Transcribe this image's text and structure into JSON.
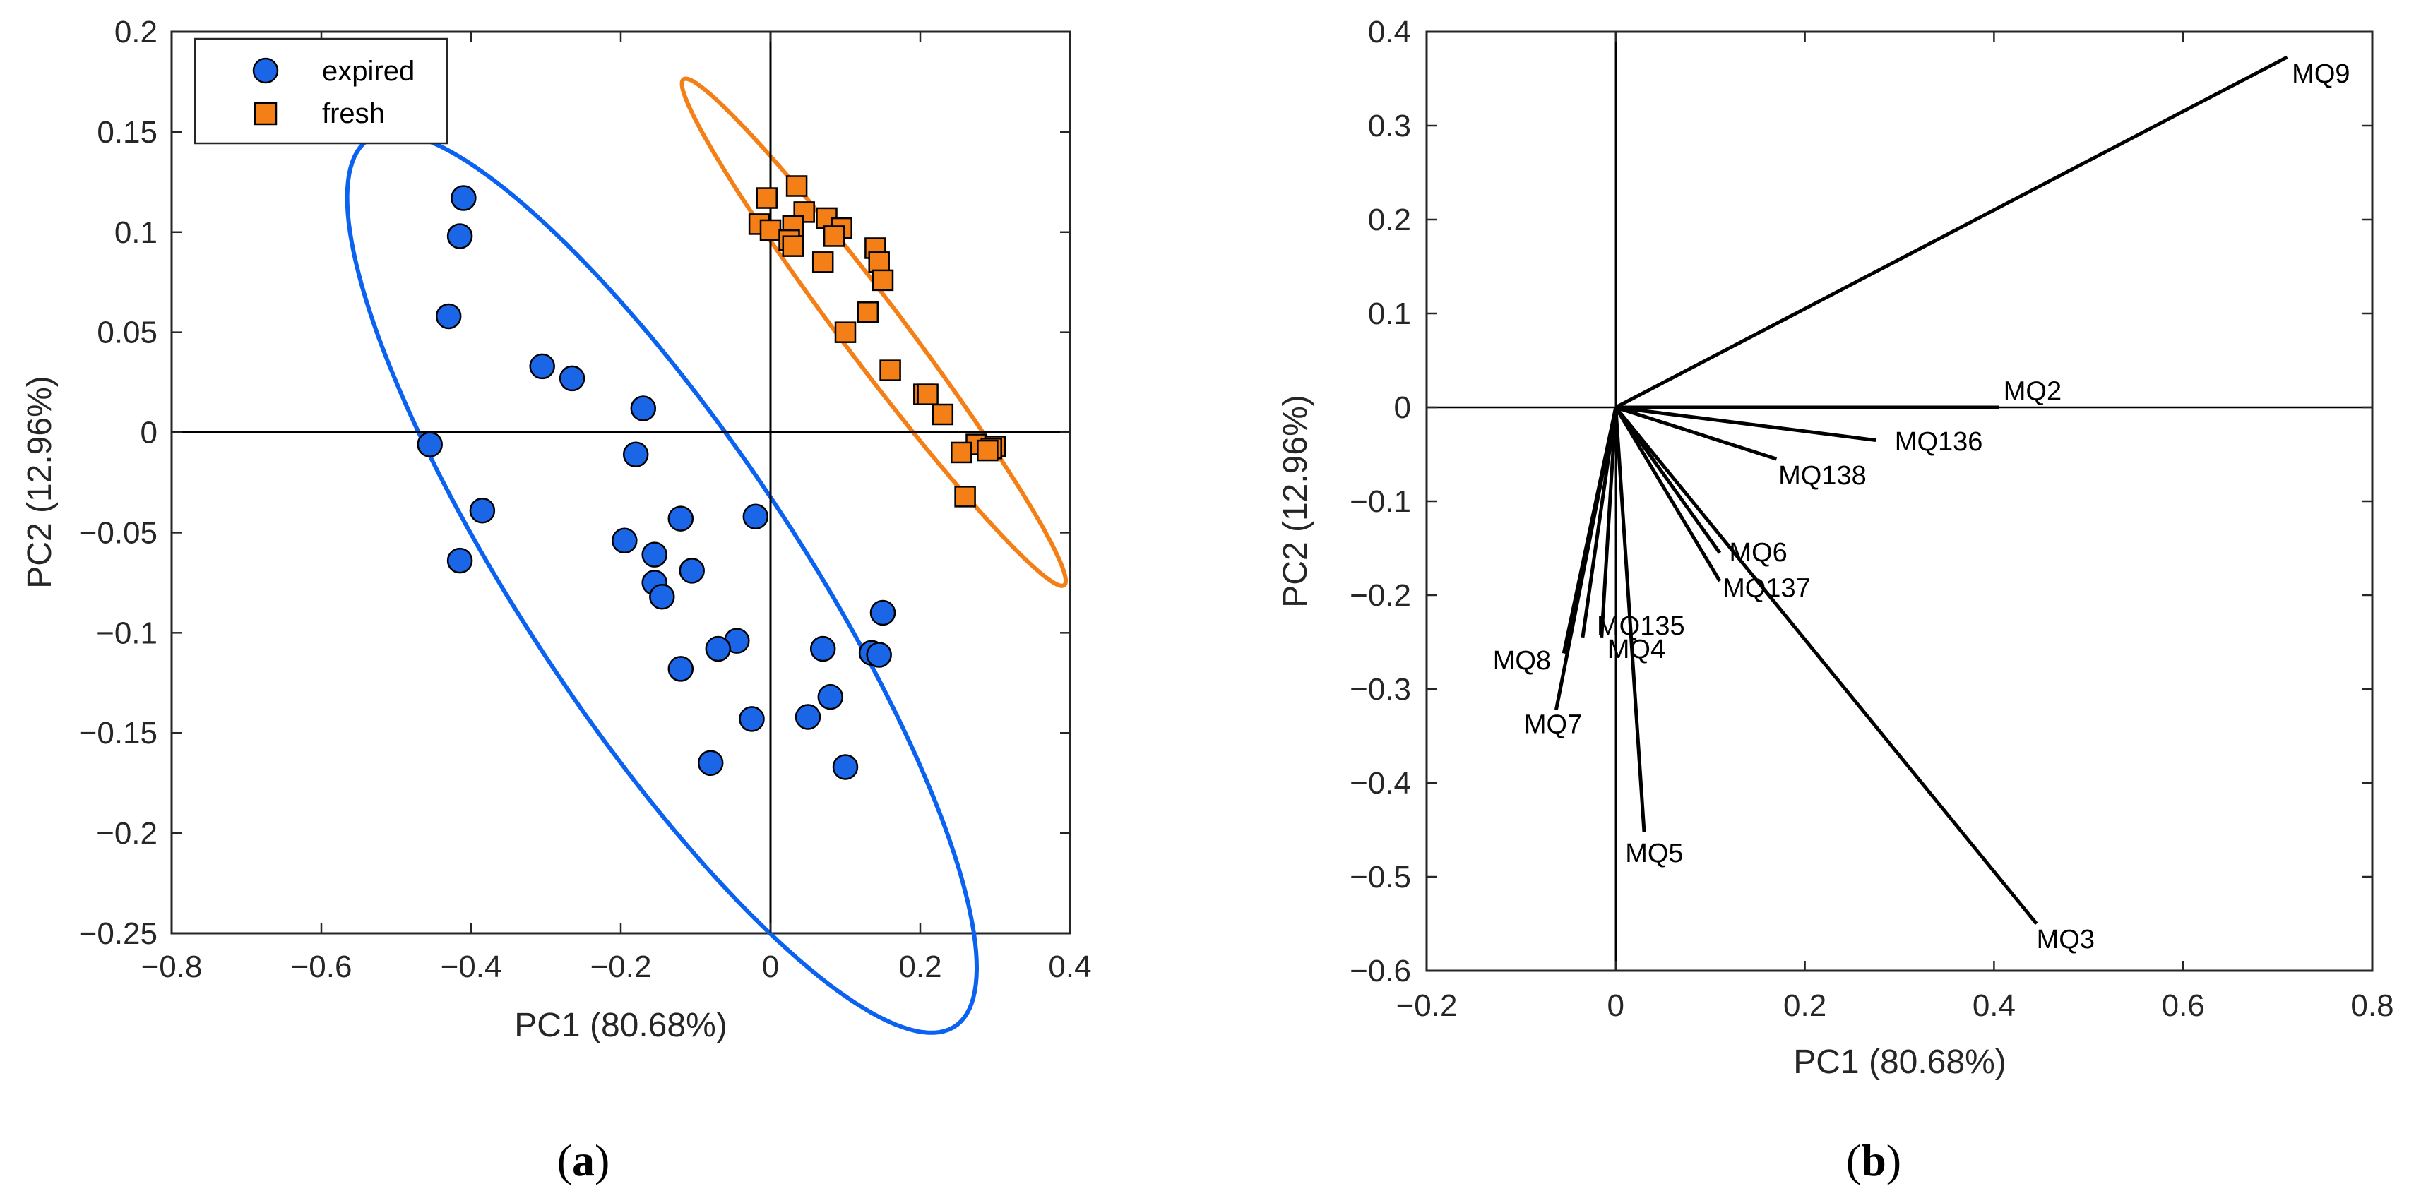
{
  "colors": {
    "expired": "#1a66e6",
    "expired_ellipse": "#0b62f0",
    "fresh": "#f57f17",
    "fresh_ellipse": "#f57f17",
    "axis": "#262626"
  },
  "captions": {
    "a_open": "(",
    "a_letter": "a",
    "a_close": ")",
    "b_open": "(",
    "b_letter": "b",
    "b_close": ")"
  },
  "chart_data": [
    {
      "type": "scatter",
      "panel": "a",
      "xlabel": "PC1 (80.68%)",
      "ylabel": "PC2 (12.96%)",
      "xlim": [
        -0.8,
        0.4
      ],
      "ylim": [
        -0.25,
        0.2
      ],
      "xticks": [
        -0.8,
        -0.6,
        -0.4,
        -0.2,
        0,
        0.2,
        0.4
      ],
      "xtick_labels": [
        "−0.8",
        "−0.6",
        "−0.4",
        "−0.2",
        "0",
        "0.2",
        "0.4"
      ],
      "yticks": [
        -0.25,
        -0.2,
        -0.15,
        -0.1,
        -0.05,
        0,
        0.05,
        0.1,
        0.15,
        0.2
      ],
      "ytick_labels": [
        "−0.25",
        "−0.2",
        "−0.15",
        "−0.1",
        "−0.05",
        "0",
        "0.05",
        "0.1",
        "0.15",
        "0.2"
      ],
      "legend": [
        "expired",
        "fresh"
      ],
      "series": [
        {
          "name": "expired",
          "marker": "circle",
          "points": [
            [
              -0.41,
              0.117
            ],
            [
              -0.415,
              0.098
            ],
            [
              -0.43,
              0.058
            ],
            [
              -0.305,
              0.033
            ],
            [
              -0.265,
              0.027
            ],
            [
              -0.17,
              0.012
            ],
            [
              -0.455,
              -0.006
            ],
            [
              -0.18,
              -0.011
            ],
            [
              -0.385,
              -0.039
            ],
            [
              -0.415,
              -0.064
            ],
            [
              -0.195,
              -0.054
            ],
            [
              -0.12,
              -0.043
            ],
            [
              -0.02,
              -0.042
            ],
            [
              -0.155,
              -0.061
            ],
            [
              -0.105,
              -0.069
            ],
            [
              -0.155,
              -0.075
            ],
            [
              -0.145,
              -0.082
            ],
            [
              0.15,
              -0.09
            ],
            [
              -0.045,
              -0.104
            ],
            [
              -0.07,
              -0.108
            ],
            [
              0.07,
              -0.108
            ],
            [
              0.135,
              -0.11
            ],
            [
              0.145,
              -0.111
            ],
            [
              -0.12,
              -0.118
            ],
            [
              0.08,
              -0.132
            ],
            [
              -0.025,
              -0.143
            ],
            [
              0.05,
              -0.142
            ],
            [
              -0.08,
              -0.165
            ],
            [
              0.1,
              -0.167
            ]
          ],
          "ellipse": {
            "cx": -0.145,
            "cy": -0.075,
            "rx": 0.465,
            "ry": 0.105,
            "angle": -26
          }
        },
        {
          "name": "fresh",
          "marker": "square",
          "points": [
            [
              -0.005,
              0.117
            ],
            [
              0.035,
              0.123
            ],
            [
              0.045,
              0.11
            ],
            [
              0.075,
              0.107
            ],
            [
              -0.015,
              0.104
            ],
            [
              0.0,
              0.101
            ],
            [
              0.03,
              0.103
            ],
            [
              0.095,
              0.102
            ],
            [
              0.085,
              0.098
            ],
            [
              0.025,
              0.096
            ],
            [
              0.03,
              0.093
            ],
            [
              0.14,
              0.092
            ],
            [
              0.145,
              0.085
            ],
            [
              0.07,
              0.085
            ],
            [
              0.15,
              0.076
            ],
            [
              0.13,
              0.06
            ],
            [
              0.1,
              0.05
            ],
            [
              0.16,
              0.031
            ],
            [
              0.205,
              0.019
            ],
            [
              0.21,
              0.019
            ],
            [
              0.23,
              0.009
            ],
            [
              0.275,
              -0.006
            ],
            [
              0.3,
              -0.007
            ],
            [
              0.295,
              -0.008
            ],
            [
              0.29,
              -0.009
            ],
            [
              0.255,
              -0.01
            ],
            [
              0.26,
              -0.032
            ]
          ],
          "ellipse": {
            "cx": 0.138,
            "cy": 0.05,
            "rx": 0.285,
            "ry": 0.0225,
            "angle": -26
          }
        }
      ]
    },
    {
      "type": "biplot",
      "panel": "b",
      "xlabel": "PC1 (80.68%)",
      "ylabel": "PC2 (12.96%)",
      "xlim": [
        -0.2,
        0.8
      ],
      "ylim": [
        -0.6,
        0.4
      ],
      "xticks": [
        -0.2,
        0,
        0.2,
        0.4,
        0.6,
        0.8
      ],
      "xtick_labels": [
        "−0.2",
        "0",
        "0.2",
        "0.4",
        "0.6",
        "0.8"
      ],
      "yticks": [
        -0.6,
        -0.5,
        -0.4,
        -0.3,
        -0.2,
        -0.1,
        0,
        0.1,
        0.2,
        0.3,
        0.4
      ],
      "ytick_labels": [
        "−0.6",
        "−0.5",
        "−0.4",
        "−0.3",
        "−0.2",
        "−0.1",
        "0",
        "0.1",
        "0.2",
        "0.3",
        "0.4"
      ],
      "vectors": [
        {
          "label": "MQ9",
          "x": 0.71,
          "y": 0.373,
          "lx": 0.715,
          "ly": 0.355
        },
        {
          "label": "MQ2",
          "x": 0.405,
          "y": 0.0,
          "lx": 0.41,
          "ly": 0.017
        },
        {
          "label": "MQ136",
          "x": 0.275,
          "y": -0.035,
          "lx": 0.295,
          "ly": -0.037
        },
        {
          "label": "MQ138",
          "x": 0.17,
          "y": -0.055,
          "lx": 0.172,
          "ly": -0.073
        },
        {
          "label": "MQ6",
          "x": 0.11,
          "y": -0.155,
          "lx": 0.12,
          "ly": -0.155
        },
        {
          "label": "MQ137",
          "x": 0.11,
          "y": -0.185,
          "lx": 0.113,
          "ly": -0.193
        },
        {
          "label": "MQ135",
          "x": -0.015,
          "y": -0.245,
          "lx": -0.02,
          "ly": -0.233
        },
        {
          "label": "MQ4",
          "x": -0.035,
          "y": -0.245,
          "lx": -0.009,
          "ly": -0.258
        },
        {
          "label": "MQ8",
          "x": -0.055,
          "y": -0.262,
          "lx": -0.13,
          "ly": -0.27
        },
        {
          "label": "MQ7",
          "x": -0.063,
          "y": -0.322,
          "lx": -0.097,
          "ly": -0.338
        },
        {
          "label": "MQ5",
          "x": 0.03,
          "y": -0.452,
          "lx": 0.01,
          "ly": -0.475
        },
        {
          "label": "MQ3",
          "x": 0.445,
          "y": -0.55,
          "lx": 0.445,
          "ly": -0.567
        }
      ]
    }
  ]
}
